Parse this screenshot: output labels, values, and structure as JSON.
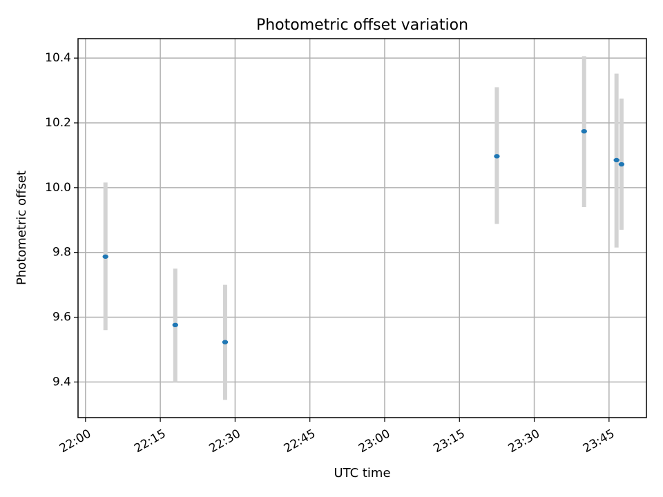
{
  "chart_data": {
    "type": "scatter",
    "title": "Photometric offset variation",
    "xlabel": "UTC time",
    "ylabel": "Photometric offset",
    "x_ticks": [
      "22:00",
      "22:15",
      "22:30",
      "22:45",
      "23:00",
      "23:15",
      "23:30",
      "23:45"
    ],
    "y_ticks": [
      "9.4",
      "9.6",
      "9.8",
      "10.0",
      "10.2",
      "10.4"
    ],
    "xlim": [
      "21:58:30",
      "23:52:30"
    ],
    "ylim": [
      9.29,
      10.46
    ],
    "grid": true,
    "error_bars": true,
    "colors": {
      "marker": "#1f77b4",
      "errorbar": "#d3d3d3"
    },
    "points": [
      {
        "x": "22:04",
        "y": 9.787,
        "yerr_low": 9.56,
        "yerr_high": 10.016
      },
      {
        "x": "22:18",
        "y": 9.576,
        "yerr_low": 9.4,
        "yerr_high": 9.75
      },
      {
        "x": "22:28",
        "y": 9.523,
        "yerr_low": 9.345,
        "yerr_high": 9.7
      },
      {
        "x": "23:22:30",
        "y": 10.097,
        "yerr_low": 9.888,
        "yerr_high": 10.31
      },
      {
        "x": "23:40",
        "y": 10.174,
        "yerr_low": 9.94,
        "yerr_high": 10.406
      },
      {
        "x": "23:46:30",
        "y": 10.085,
        "yerr_low": 9.815,
        "yerr_high": 10.352
      },
      {
        "x": "23:47:30",
        "y": 10.072,
        "yerr_low": 9.87,
        "yerr_high": 10.275
      }
    ]
  }
}
